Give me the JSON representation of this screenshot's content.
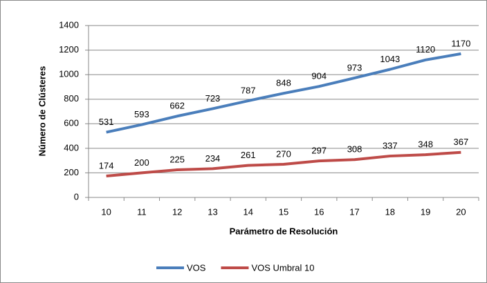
{
  "chart_data": {
    "type": "line",
    "xlabel": "Parámetro de Resolución",
    "ylabel": "Número de Clústeres",
    "categories": [
      "10",
      "11",
      "12",
      "13",
      "14",
      "15",
      "16",
      "17",
      "18",
      "19",
      "20"
    ],
    "series": [
      {
        "name": "VOS",
        "color": "#4a7ebb",
        "values": [
          531,
          593,
          662,
          723,
          787,
          848,
          904,
          973,
          1043,
          1120,
          1170
        ]
      },
      {
        "name": "VOS Umbral 10",
        "color": "#be4b48",
        "values": [
          174,
          200,
          225,
          234,
          261,
          270,
          297,
          308,
          337,
          348,
          367
        ]
      }
    ],
    "ylim": [
      0,
      1400
    ],
    "yticks": [
      0,
      200,
      400,
      600,
      800,
      1000,
      1200,
      1400
    ],
    "grid": true,
    "legend": "bottom"
  }
}
